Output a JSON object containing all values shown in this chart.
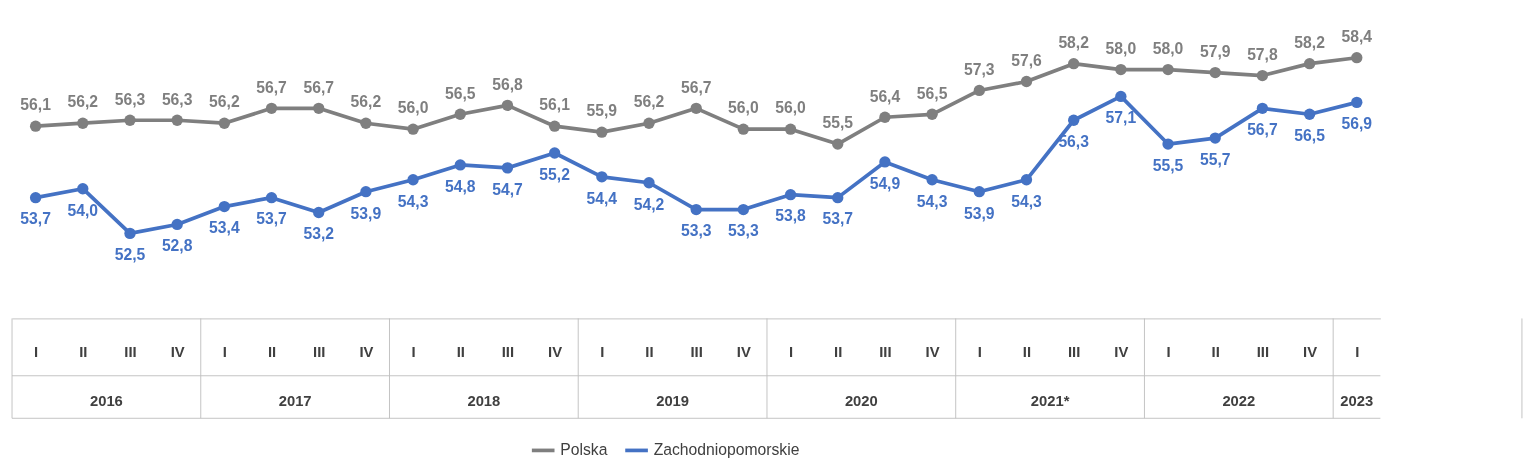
{
  "chart_data": {
    "type": "line",
    "categories": [
      "I",
      "II",
      "III",
      "IV",
      "I",
      "II",
      "III",
      "IV",
      "I",
      "II",
      "III",
      "IV",
      "I",
      "II",
      "III",
      "IV",
      "I",
      "II",
      "III",
      "IV",
      "I",
      "II",
      "III",
      "IV",
      "I",
      "II",
      "III",
      "IV",
      "I"
    ],
    "marker": "circle",
    "line_style": "solid",
    "legend": "bottom",
    "grid": false,
    "annotations": [
      "2016",
      "2017",
      "2018",
      "2019",
      "2020",
      "2021*",
      "2022",
      "2023"
    ],
    "series": [
      {
        "name": "Polska",
        "color": "#7f7f7f",
        "values": [
          56.1,
          56.2,
          56.3,
          56.3,
          56.2,
          56.7,
          56.7,
          56.2,
          56.0,
          56.5,
          56.8,
          56.1,
          55.9,
          56.2,
          56.7,
          56.0,
          56.0,
          55.5,
          56.4,
          56.5,
          57.3,
          57.6,
          58.2,
          58.0,
          58.0,
          57.9,
          57.8,
          58.2,
          58.4
        ],
        "value_labels": [
          "56,1",
          "56,2",
          "56,3",
          "56,3",
          "56,2",
          "56,7",
          "56,7",
          "56,2",
          "56,0",
          "56,5",
          "56,8",
          "56,1",
          "55,9",
          "56,2",
          "56,7",
          "56,0",
          "56,0",
          "55,5",
          "56,4",
          "56,5",
          "57,3",
          "57,6",
          "58,2",
          "58,0",
          "58,0",
          "57,9",
          "57,8",
          "58,2",
          "58,4"
        ]
      },
      {
        "name": "Zachodniopomorskie",
        "color": "#4472c4",
        "values": [
          53.7,
          54.0,
          52.5,
          52.8,
          53.4,
          53.7,
          53.2,
          53.9,
          54.3,
          54.8,
          54.7,
          55.2,
          54.4,
          54.2,
          53.3,
          53.3,
          53.8,
          53.7,
          54.9,
          54.3,
          53.9,
          54.3,
          56.3,
          57.1,
          55.5,
          55.7,
          56.7,
          56.5,
          56.9
        ],
        "value_labels": [
          "53,7",
          "54,0",
          "52,5",
          "52,8",
          "53,4",
          "53,7",
          "53,2",
          "53,9",
          "54,3",
          "54,8",
          "54,7",
          "55,2",
          "54,4",
          "54,2",
          "53,3",
          "53,3",
          "53,8",
          "53,7",
          "54,9",
          "54,3",
          "53,9",
          "54,3",
          "56,3",
          "57,1",
          "55,5",
          "55,7",
          "56,7",
          "56,5",
          "56,9"
        ]
      }
    ]
  }
}
